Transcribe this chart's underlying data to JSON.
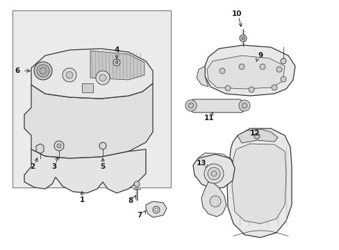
{
  "bg_color": "#ffffff",
  "lc": "#333333",
  "fill_light": "#f0f0f0",
  "fill_med": "#e0e0e0",
  "fill_dark": "#c8c8c8",
  "box_bg": "#e8e8e8",
  "box_edge": "#888888",
  "label_positions": {
    "1": [
      118,
      288,
      118,
      272
    ],
    "2": [
      47,
      240,
      55,
      224
    ],
    "3": [
      78,
      240,
      84,
      222
    ],
    "4": [
      168,
      72,
      168,
      88
    ],
    "5": [
      148,
      240,
      148,
      224
    ],
    "6": [
      25,
      102,
      47,
      102
    ],
    "7": [
      201,
      310,
      212,
      300
    ],
    "8": [
      188,
      289,
      197,
      278
    ],
    "9": [
      375,
      80,
      368,
      92
    ],
    "10": [
      341,
      20,
      348,
      42
    ],
    "11": [
      301,
      170,
      307,
      158
    ],
    "12": [
      367,
      192,
      360,
      202
    ],
    "13": [
      290,
      235,
      302,
      245
    ]
  }
}
